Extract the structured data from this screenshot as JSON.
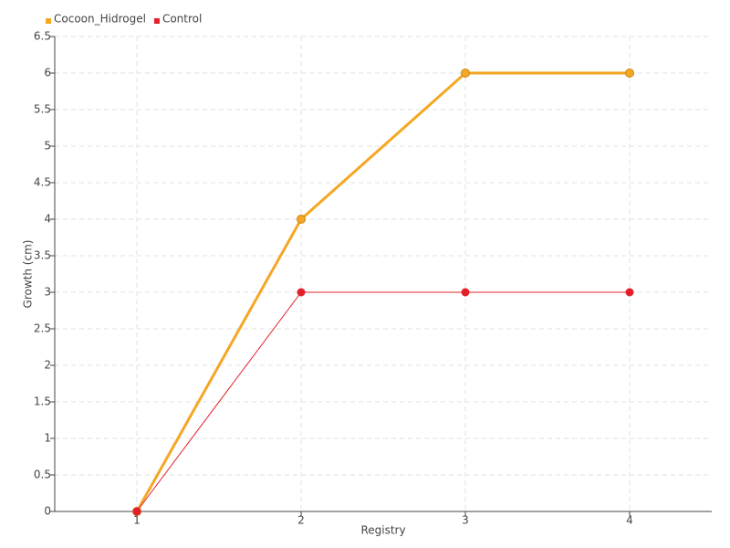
{
  "chart_data": {
    "type": "line",
    "categories": [
      "1",
      "2",
      "3",
      "4"
    ],
    "x_label": "Registry",
    "y_label": "Growth (cm)",
    "series": [
      {
        "name": "Cocoon_Hidrogel",
        "color": "#f5a623",
        "values": [
          0,
          4,
          6,
          6
        ]
      },
      {
        "name": "Control",
        "color": "#e3202a",
        "values": [
          0,
          3,
          3,
          3
        ]
      }
    ],
    "ylim": [
      0,
      6.5
    ],
    "yticks": [
      0,
      0.5,
      1,
      1.5,
      2,
      2.5,
      3,
      3.5,
      4,
      4.5,
      5,
      5.5,
      6,
      6.5
    ],
    "grid": true,
    "legend": "top-left"
  }
}
